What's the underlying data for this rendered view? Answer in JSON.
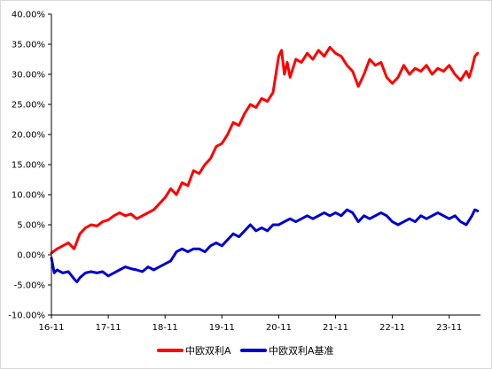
{
  "chart_data": {
    "type": "line",
    "title": "",
    "xlabel": "",
    "ylabel": "",
    "ylim": [
      -10,
      40
    ],
    "yticks": [
      -10,
      -5,
      0,
      5,
      10,
      15,
      20,
      25,
      30,
      35,
      40
    ],
    "ytick_labels": [
      "-10.00%",
      "-5.00%",
      "0.00%",
      "5.00%",
      "10.00%",
      "15.00%",
      "20.00%",
      "25.00%",
      "30.00%",
      "35.00%",
      "40.00%"
    ],
    "x_unit": "years since first tick (16-11)",
    "xlim": [
      0,
      7.55
    ],
    "xticks": [
      0,
      1,
      2,
      3,
      4,
      5,
      6,
      7
    ],
    "xtick_labels": [
      "16-11",
      "17-11",
      "18-11",
      "19-11",
      "20-11",
      "21-11",
      "22-11",
      "23-11"
    ],
    "grid": false,
    "legend_position": "bottom",
    "series": [
      {
        "name": "中欧双利A",
        "color": "#ff0000",
        "x": [
          0,
          0.1,
          0.2,
          0.3,
          0.4,
          0.5,
          0.6,
          0.7,
          0.8,
          0.9,
          1.0,
          1.1,
          1.2,
          1.3,
          1.4,
          1.5,
          1.6,
          1.7,
          1.8,
          1.9,
          2.0,
          2.1,
          2.2,
          2.3,
          2.4,
          2.5,
          2.6,
          2.7,
          2.8,
          2.9,
          3.0,
          3.1,
          3.2,
          3.3,
          3.4,
          3.5,
          3.6,
          3.7,
          3.8,
          3.9,
          4.0,
          4.05,
          4.1,
          4.15,
          4.2,
          4.3,
          4.4,
          4.5,
          4.6,
          4.7,
          4.8,
          4.9,
          5.0,
          5.1,
          5.2,
          5.3,
          5.4,
          5.5,
          5.6,
          5.7,
          5.8,
          5.9,
          6.0,
          6.1,
          6.2,
          6.3,
          6.4,
          6.5,
          6.6,
          6.7,
          6.8,
          6.9,
          7.0,
          7.1,
          7.2,
          7.3,
          7.35,
          7.4,
          7.45,
          7.5
        ],
        "values": [
          0.3,
          1.0,
          1.5,
          2.0,
          1.0,
          3.5,
          4.5,
          5.0,
          4.8,
          5.5,
          5.8,
          6.5,
          7.0,
          6.5,
          6.8,
          6.0,
          6.5,
          7.0,
          7.5,
          8.5,
          9.5,
          11.0,
          10.0,
          12.0,
          11.5,
          14.0,
          13.5,
          15.0,
          16.0,
          18.0,
          18.5,
          20.0,
          22.0,
          21.5,
          23.5,
          25.0,
          24.5,
          26.0,
          25.5,
          27.0,
          33.0,
          34.0,
          30.0,
          32.0,
          29.5,
          32.5,
          32.0,
          33.5,
          32.5,
          34.0,
          33.0,
          34.5,
          33.5,
          33.0,
          31.5,
          30.5,
          28.0,
          30.0,
          32.5,
          31.5,
          32.0,
          29.5,
          28.5,
          29.5,
          31.5,
          30.0,
          31.0,
          30.5,
          31.5,
          30.0,
          31.0,
          30.5,
          31.5,
          30.0,
          29.0,
          30.5,
          29.5,
          31.0,
          33.0,
          33.5
        ]
      },
      {
        "name": "中欧双利A基准",
        "color": "#0000cc",
        "x": [
          0,
          0.05,
          0.1,
          0.2,
          0.3,
          0.4,
          0.45,
          0.5,
          0.6,
          0.7,
          0.8,
          0.9,
          1.0,
          1.1,
          1.2,
          1.3,
          1.4,
          1.5,
          1.6,
          1.7,
          1.8,
          1.9,
          2.0,
          2.1,
          2.2,
          2.3,
          2.4,
          2.5,
          2.6,
          2.7,
          2.8,
          2.9,
          3.0,
          3.1,
          3.2,
          3.3,
          3.4,
          3.5,
          3.6,
          3.7,
          3.8,
          3.9,
          4.0,
          4.1,
          4.2,
          4.3,
          4.4,
          4.5,
          4.6,
          4.7,
          4.8,
          4.9,
          5.0,
          5.1,
          5.2,
          5.3,
          5.4,
          5.5,
          5.6,
          5.7,
          5.8,
          5.9,
          6.0,
          6.1,
          6.2,
          6.3,
          6.4,
          6.5,
          6.6,
          6.7,
          6.8,
          6.9,
          7.0,
          7.1,
          7.2,
          7.3,
          7.4,
          7.45,
          7.5
        ],
        "values": [
          -0.5,
          -3.0,
          -2.5,
          -3.0,
          -2.8,
          -4.0,
          -4.5,
          -3.8,
          -3.0,
          -2.8,
          -3.0,
          -2.8,
          -3.5,
          -3.0,
          -2.5,
          -2.0,
          -2.3,
          -2.5,
          -2.8,
          -2.0,
          -2.5,
          -2.0,
          -1.5,
          -1.0,
          0.5,
          1.0,
          0.5,
          1.0,
          1.0,
          0.5,
          1.5,
          2.0,
          1.5,
          2.5,
          3.5,
          3.0,
          4.0,
          5.0,
          4.0,
          4.5,
          4.0,
          5.0,
          5.0,
          5.5,
          6.0,
          5.5,
          6.0,
          6.5,
          6.0,
          6.5,
          7.0,
          6.5,
          7.0,
          6.5,
          7.5,
          7.0,
          5.5,
          6.5,
          6.0,
          6.5,
          7.0,
          6.5,
          5.5,
          5.0,
          5.5,
          6.0,
          5.5,
          6.5,
          6.0,
          6.5,
          7.0,
          6.5,
          6.0,
          6.5,
          5.5,
          5.0,
          6.5,
          7.5,
          7.3
        ]
      }
    ]
  }
}
